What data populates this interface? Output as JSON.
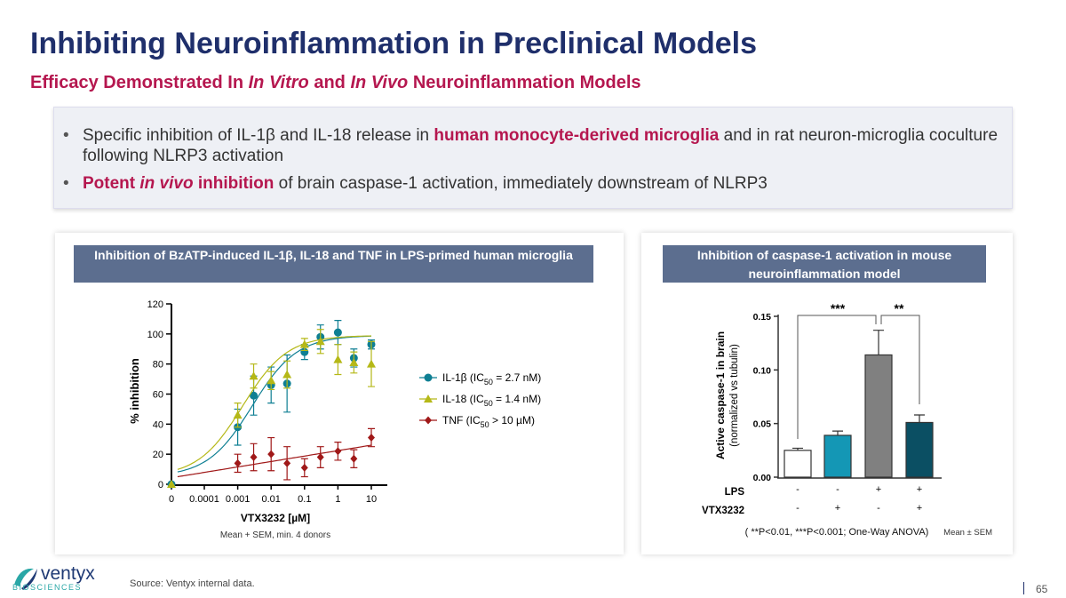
{
  "title": "Inhibiting Neuroinflammation in Preclinical Models",
  "subtitle": {
    "a": "Efficacy Demonstrated In ",
    "b": "In Vitro",
    "c": " and ",
    "d": "In Vivo",
    "e": " Neuroinflammation Models"
  },
  "bullets": [
    {
      "a": "Specific inhibition of IL-1β and IL-18 release in ",
      "b": "human monocyte-derived microglia",
      "c": " and in rat neuron-microglia coculture following NLRP3 activation"
    },
    {
      "a": "Potent ",
      "b": "in vivo",
      "c": " inhibition",
      "d": " of brain caspase-1 activation, immediately downstream of NLRP3"
    }
  ],
  "left_panel": {
    "header": "Inhibition of BzATP-induced IL-1β, IL-18 and TNF in LPS-primed human microglia",
    "note": "Mean + SEM, min. 4 donors"
  },
  "right_panel": {
    "header": "Inhibition of caspase-1 activation in mouse neuroinflammation model",
    "note": "Mean ± SEM",
    "stats_note": "( **P<0.01, ***P<0.001; One-Way ANOVA)"
  },
  "footer": "Source: Ventyx internal data.",
  "page_number": "65",
  "logo": {
    "name": "ventyx",
    "sub": "BIOSCIENCES"
  },
  "chart_data": [
    {
      "type": "scatter",
      "xlabel": "VTX3232 [µM]",
      "ylabel": "% inhibition",
      "xscale": "log",
      "ylim": [
        0,
        120
      ],
      "yticks": [
        0,
        20,
        40,
        60,
        80,
        100,
        120
      ],
      "xticks": [
        "0",
        "0.0001",
        "0.001",
        "0.01",
        "0.1",
        "1",
        "10"
      ],
      "x": [
        0,
        0.001,
        0.003,
        0.01,
        0.03,
        0.1,
        0.3,
        1,
        3,
        10
      ],
      "legend_position": "right",
      "series": [
        {
          "name": "IL-1β (IC50 = 2.7 nM)",
          "label": "IL-1β (IC",
          "sub": "50",
          "tail": " = 2.7 nM)",
          "color": "#0e7f93",
          "marker": "circle",
          "ic50": 0.0027,
          "values": [
            0,
            38,
            59,
            66,
            67,
            88,
            98,
            101,
            84,
            93
          ],
          "errors": [
            0,
            12,
            13,
            12,
            19,
            5,
            8,
            8,
            6,
            3
          ]
        },
        {
          "name": "IL-18 (IC50 = 1.4 nM)",
          "label": "IL-18 (IC",
          "sub": "50",
          "tail": " = 1.4 nM)",
          "color": "#b5b817",
          "marker": "triangle",
          "ic50": 0.0014,
          "values": [
            0,
            46,
            72,
            69,
            73,
            93,
            95,
            83,
            81,
            80
          ],
          "errors": [
            0,
            8,
            8,
            6,
            9,
            4,
            8,
            10,
            7,
            15
          ]
        },
        {
          "name": "TNF (IC50 > 10 µM)",
          "label": "TNF (IC",
          "sub": "50",
          "tail": " > 10 µM)",
          "color": "#a01818",
          "marker": "diamond",
          "values": [
            null,
            14,
            18,
            20,
            14,
            11,
            18,
            22,
            17,
            31
          ],
          "errors": [
            0,
            6,
            9,
            11,
            11,
            6,
            7,
            6,
            6,
            6
          ]
        }
      ]
    },
    {
      "type": "bar",
      "ylabel": "Active caspase-1 in brain",
      "ylabel2": "(normalized vs tubulin)",
      "ylim": [
        0,
        0.15
      ],
      "yticks": [
        "0.00",
        "0.05",
        "0.10",
        "0.15"
      ],
      "rows": [
        {
          "label": "LPS",
          "values": [
            "-",
            "-",
            "+",
            "+"
          ]
        },
        {
          "label": "VTX3232",
          "values": [
            "-",
            "+",
            "-",
            "+"
          ]
        }
      ],
      "values": [
        0.025,
        0.039,
        0.114,
        0.051
      ],
      "errors": [
        0.002,
        0.004,
        0.023,
        0.007
      ],
      "colors": [
        "#ffffff",
        "#1497b5",
        "#808080",
        "#0b4f63"
      ],
      "significance": [
        {
          "from": 0,
          "to": 2,
          "label": "***"
        },
        {
          "from": 2,
          "to": 3,
          "label": "**"
        }
      ]
    }
  ]
}
